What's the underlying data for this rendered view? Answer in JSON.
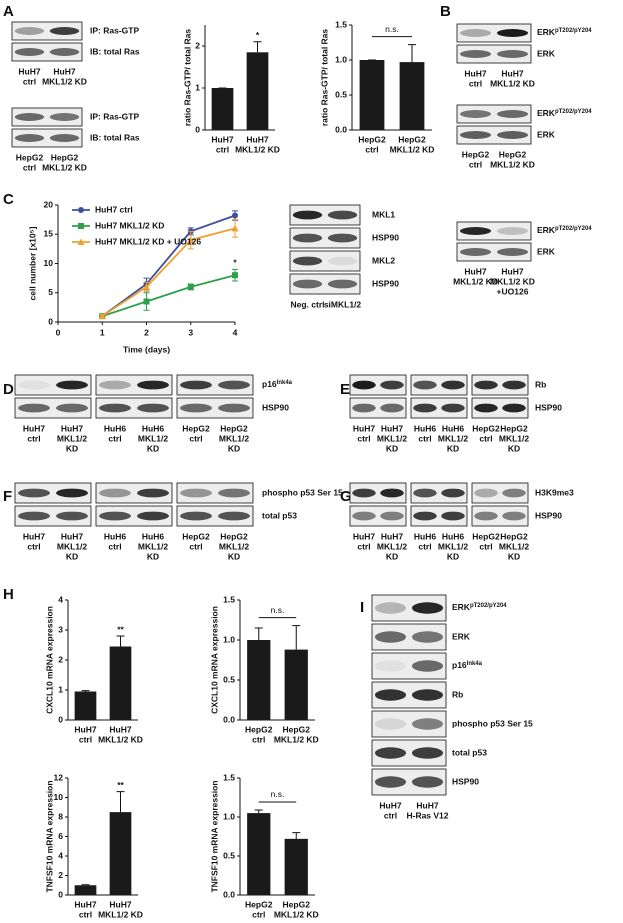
{
  "panel_labels": [
    "A",
    "B",
    "C",
    "D",
    "E",
    "F",
    "G",
    "H",
    "I"
  ],
  "chart_data": [
    {
      "type": "bar",
      "ylabel": "ratio Ras-GTP/ total Ras",
      "categories": [
        [
          "HuH7",
          "ctrl"
        ],
        [
          "HuH7",
          "MKL1/2 KD"
        ]
      ],
      "values": [
        1,
        1.85
      ],
      "errors": [
        0,
        0.25
      ],
      "color": "#1a1a1a",
      "ylim": [
        0,
        2.5
      ],
      "yticks": [
        0,
        1,
        2
      ],
      "annotation": "*"
    },
    {
      "type": "bar",
      "ylabel": "ratio Ras-GTP/ total Ras",
      "categories": [
        [
          "HepG2",
          "ctrl"
        ],
        [
          "HepG2",
          "MKL1/2 KD"
        ]
      ],
      "values": [
        1,
        0.97
      ],
      "errors": [
        0,
        0.25
      ],
      "color": "#1a1a1a",
      "ylim": [
        0,
        1.5
      ],
      "yticks": [
        {
          "value": 0,
          "label": "0.0"
        },
        {
          "value": 0.5,
          "label": "0.5"
        },
        {
          "value": 1,
          "label": "1.0"
        },
        {
          "value": 1.5,
          "label": "1.5"
        }
      ],
      "annotation": "n.s."
    },
    {
      "type": "line",
      "xlabel": "Time (days)",
      "ylabel": "cell number [x10⁵]",
      "x": [
        1,
        2,
        3,
        4
      ],
      "series": [
        {
          "name": "HuH7 ctrl",
          "color": "#3f4fa0",
          "values": [
            1,
            6.5,
            15.5,
            18.2
          ],
          "errors": [
            0.3,
            1,
            0.6,
            0.8
          ]
        },
        {
          "name": "HuH7 MKL1/2 KD",
          "color": "#2ea04a",
          "values": [
            1,
            3.5,
            6,
            8
          ],
          "errors": [
            0.3,
            1.5,
            0.5,
            1
          ]
        },
        {
          "name": "HuH7 MKL1/2 KD + UO126",
          "color": "#f0a030",
          "values": [
            1,
            6,
            14,
            16
          ],
          "errors": [
            0.3,
            0.8,
            1.5,
            1.5
          ]
        }
      ],
      "xlim": [
        0,
        4
      ],
      "xticks": [
        0,
        1,
        2,
        3,
        4
      ],
      "ylim": [
        0,
        20
      ],
      "yticks": [
        0,
        5,
        10,
        15,
        20
      ],
      "annotation": "*"
    },
    {
      "type": "bar",
      "ylabel": "CXCL10 mRNA expression",
      "categories": [
        [
          "HuH7",
          "ctrl"
        ],
        [
          "HuH7",
          "MKL1/2 KD"
        ]
      ],
      "values": [
        0.95,
        2.45
      ],
      "errors": [
        0.03,
        0.35
      ],
      "color": "#1a1a1a",
      "ylim": [
        0,
        4
      ],
      "yticks": [
        0,
        1,
        2,
        3,
        4
      ],
      "annotation": "**"
    },
    {
      "type": "bar",
      "ylabel": "CXCL10 mRNA expression",
      "categories": [
        [
          "HepG2",
          "ctrl"
        ],
        [
          "HepG2",
          "MKL1/2 KD"
        ]
      ],
      "values": [
        1,
        0.88
      ],
      "errors": [
        0.15,
        0.3
      ],
      "color": "#1a1a1a",
      "ylim": [
        0,
        1.5
      ],
      "yticks": [
        {
          "value": 0,
          "label": "0.0"
        },
        {
          "value": 0.5,
          "label": "0.5"
        },
        {
          "value": 1,
          "label": "1.0"
        },
        {
          "value": 1.5,
          "label": "1.5"
        }
      ],
      "annotation": "n.s."
    },
    {
      "type": "bar",
      "ylabel": "TNFSF10 mRNA expression",
      "categories": [
        [
          "HuH7",
          "ctrl"
        ],
        [
          "HuH7",
          "MKL1/2 KD"
        ]
      ],
      "values": [
        1,
        8.5
      ],
      "errors": [
        0.05,
        2.1
      ],
      "color": "#1a1a1a",
      "ylim": [
        0,
        12
      ],
      "yticks": [
        0,
        2,
        4,
        6,
        8,
        10,
        12
      ],
      "annotation": "**"
    },
    {
      "type": "bar",
      "ylabel": "TNFSF10 mRNA expression",
      "categories": [
        [
          "HepG2",
          "ctrl"
        ],
        [
          "HepG2",
          "MKL1/2 KD"
        ]
      ],
      "values": [
        1.05,
        0.72
      ],
      "errors": [
        0.04,
        0.08
      ],
      "color": "#1a1a1a",
      "ylim": [
        0,
        1.5
      ],
      "yticks": [
        {
          "value": 0,
          "label": "0.0"
        },
        {
          "value": 0.5,
          "label": "0.5"
        },
        {
          "value": 1,
          "label": "1.0"
        },
        {
          "value": 1.5,
          "label": "1.5"
        }
      ],
      "annotation": "n.s."
    }
  ],
  "blots": [
    {
      "rows": [
        "IP: Ras-GTP",
        "IB: total Ras"
      ],
      "lanes": [
        [
          "HuH7",
          "ctrl"
        ],
        [
          "HuH7",
          "MKL1/2 KD"
        ]
      ]
    },
    {
      "rows": [
        "IP: Ras-GTP",
        "IB: total Ras"
      ],
      "lanes": [
        [
          "HepG2",
          "ctrl"
        ],
        [
          "HepG2",
          "MKL1/2 KD"
        ]
      ]
    },
    {
      "rows": [
        {
          "text": "ERK",
          "sup": "pT202/pY204"
        },
        "ERK"
      ],
      "lanes": [
        [
          "HuH7",
          "ctrl"
        ],
        [
          "HuH7",
          "MKL1/2 KD"
        ]
      ]
    },
    {
      "rows": [
        {
          "text": "ERK",
          "sup": "pT202/pY204"
        },
        "ERK"
      ],
      "lanes": [
        [
          "HepG2",
          "ctrl"
        ],
        [
          "HepG2",
          "MKL1/2 KD"
        ]
      ]
    },
    {
      "rows": [
        "MKL1",
        "HSP90",
        "MKL2",
        "HSP90"
      ],
      "lanes": [
        [
          "Neg. ctrl"
        ],
        [
          "siMKL1/2"
        ]
      ]
    },
    {
      "rows": [
        {
          "text": "ERK",
          "sup": "pT202/pY204"
        },
        "ERK"
      ],
      "lanes": [
        [
          "HuH7",
          "MKL1/2 KD"
        ],
        [
          "HuH7",
          "MKL1/2 KD",
          "+UO126"
        ]
      ]
    },
    {
      "rows": [
        {
          "text": "p16",
          "sup": "Ink4a"
        },
        "HSP90"
      ],
      "lanes": [
        [
          "HuH7",
          "ctrl"
        ],
        [
          "HuH7",
          "MKL1/2",
          "KD"
        ],
        [
          "HuH6",
          "ctrl"
        ],
        [
          "HuH6",
          "MKL1/2",
          "KD"
        ],
        [
          "HepG2",
          "ctrl"
        ],
        [
          "HepG2",
          "MKL1/2",
          "KD"
        ]
      ]
    },
    {
      "rows": [
        "Rb",
        "HSP90"
      ],
      "lanes": [
        [
          "HuH7",
          "ctrl"
        ],
        [
          "HuH7",
          "MKL1/2",
          "KD"
        ],
        [
          "HuH6",
          "ctrl"
        ],
        [
          "HuH6",
          "MKL1/2",
          "KD"
        ],
        [
          "HepG2",
          "ctrl"
        ],
        [
          "HepG2",
          "MKL1/2",
          "KD"
        ]
      ]
    },
    {
      "rows": [
        "phospho p53 Ser 15",
        "total p53"
      ],
      "lanes": [
        [
          "HuH7",
          "ctrl"
        ],
        [
          "HuH7",
          "MKL1/2",
          "KD"
        ],
        [
          "HuH6",
          "ctrl"
        ],
        [
          "HuH6",
          "MKL1/2",
          "KD"
        ],
        [
          "HepG2",
          "ctrl"
        ],
        [
          "HepG2",
          "MKL1/2",
          "KD"
        ]
      ]
    },
    {
      "rows": [
        "H3K9me3",
        "HSP90"
      ],
      "lanes": [
        [
          "HuH7",
          "ctrl"
        ],
        [
          "HuH7",
          "MKL1/2",
          "KD"
        ],
        [
          "HuH6",
          "ctrl"
        ],
        [
          "HuH6",
          "MKL1/2",
          "KD"
        ],
        [
          "HepG2",
          "ctrl"
        ],
        [
          "HepG2",
          "MKL1/2",
          "KD"
        ]
      ]
    },
    {
      "rows": [
        {
          "text": "ERK",
          "sup": "pT202/pY204"
        },
        "ERK",
        {
          "text": "p16",
          "sup": "Ink4a"
        },
        "Rb",
        "phospho p53 Ser 15",
        "total p53",
        "HSP90"
      ],
      "lanes": [
        [
          "HuH7",
          "ctrl"
        ],
        [
          "HuH7",
          "H-Ras V12"
        ]
      ]
    }
  ]
}
